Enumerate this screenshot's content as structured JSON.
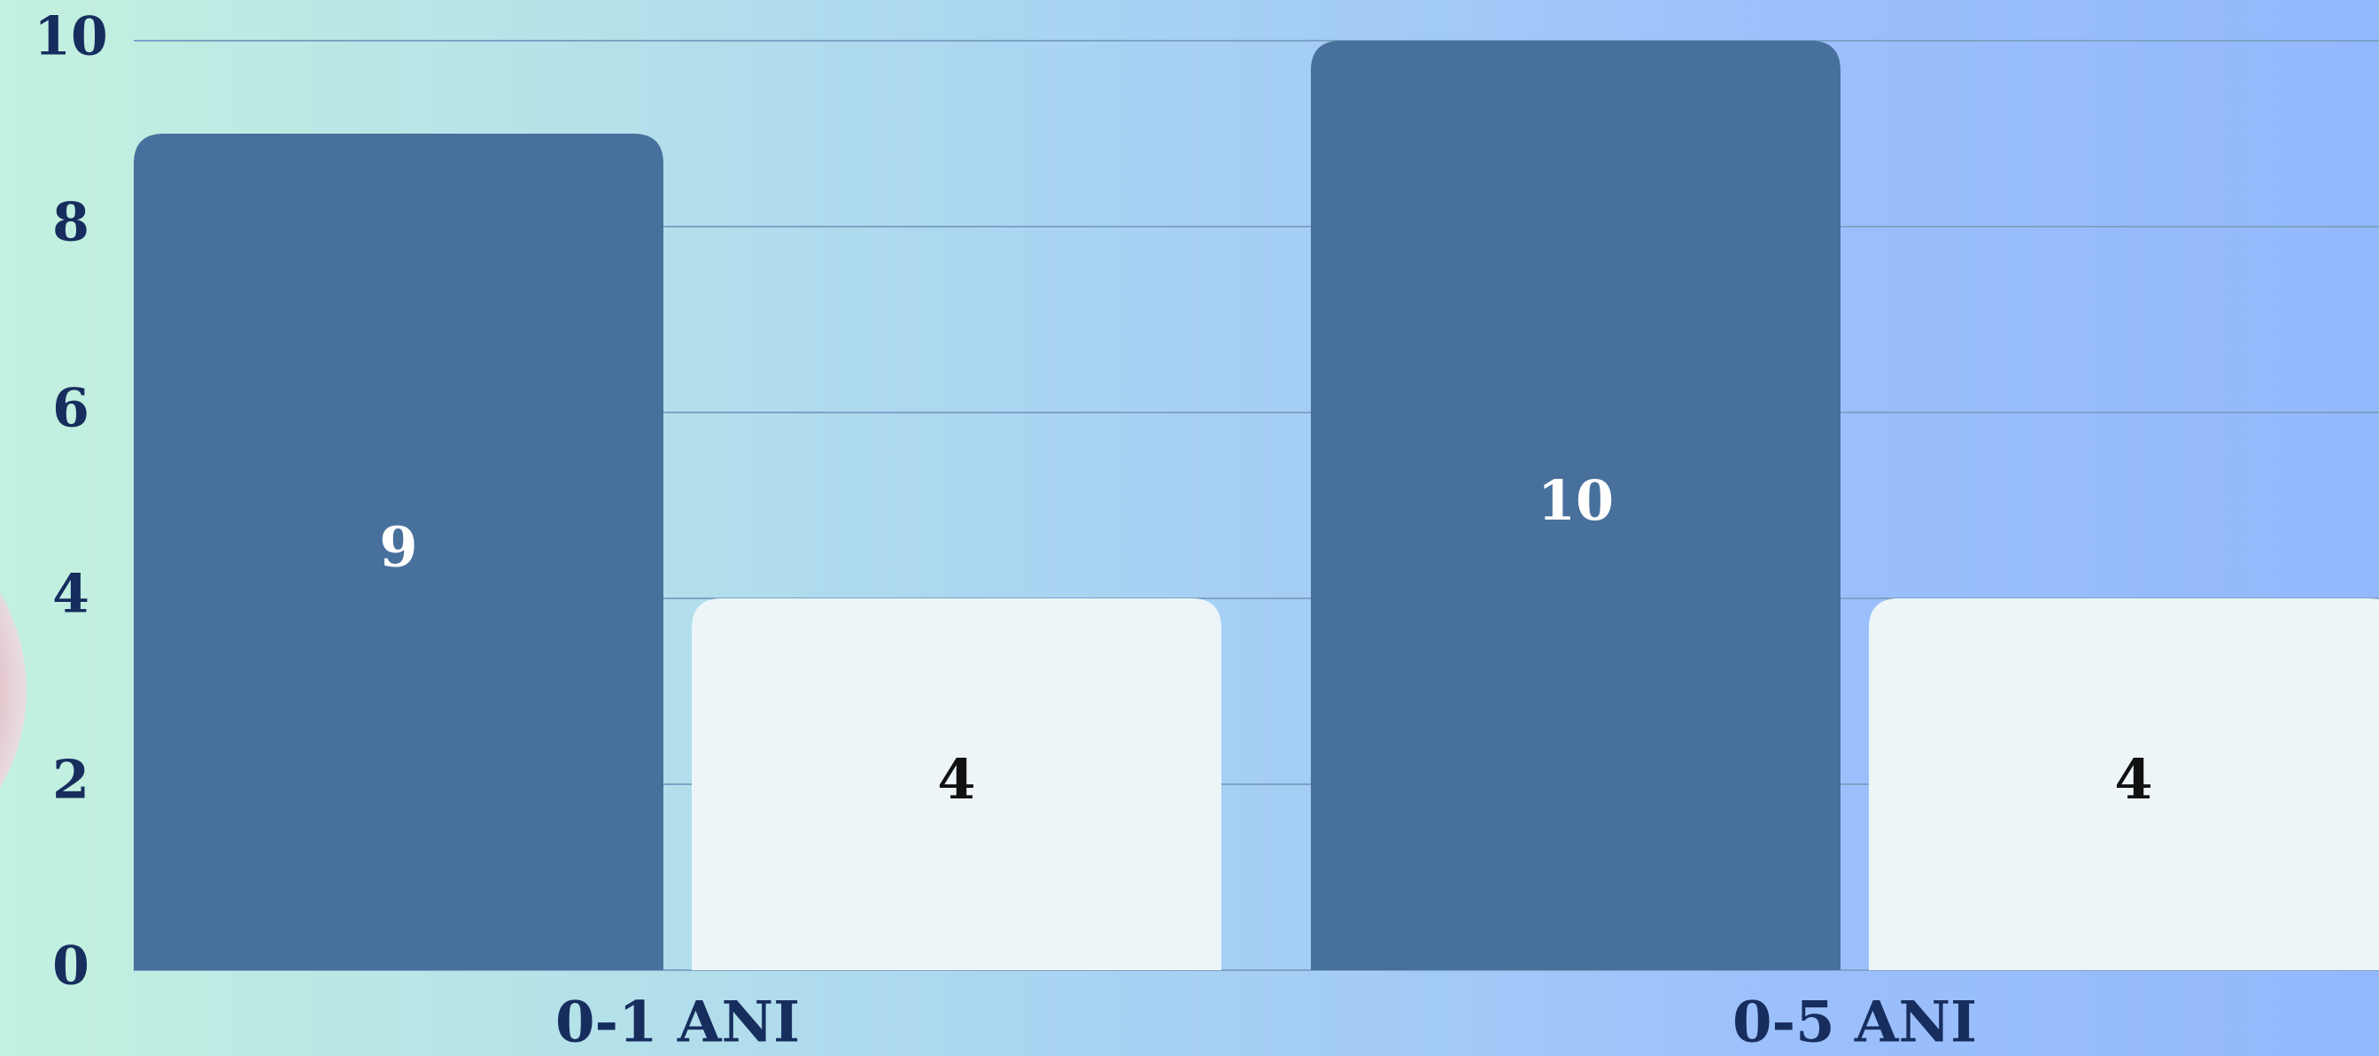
{
  "chart_data": {
    "type": "bar",
    "categories": [
      "0-1 ANI",
      "0-5 ANI"
    ],
    "series": [
      {
        "color": "#47709c",
        "label_color": "#ffffff",
        "values": [
          9,
          10
        ]
      },
      {
        "color": "#edf5f8",
        "label_color": "#111111",
        "values": [
          4,
          4
        ]
      }
    ],
    "ylim": [
      0,
      10
    ],
    "yticks": [
      0,
      2,
      4,
      6,
      8,
      10
    ],
    "grid": true
  }
}
